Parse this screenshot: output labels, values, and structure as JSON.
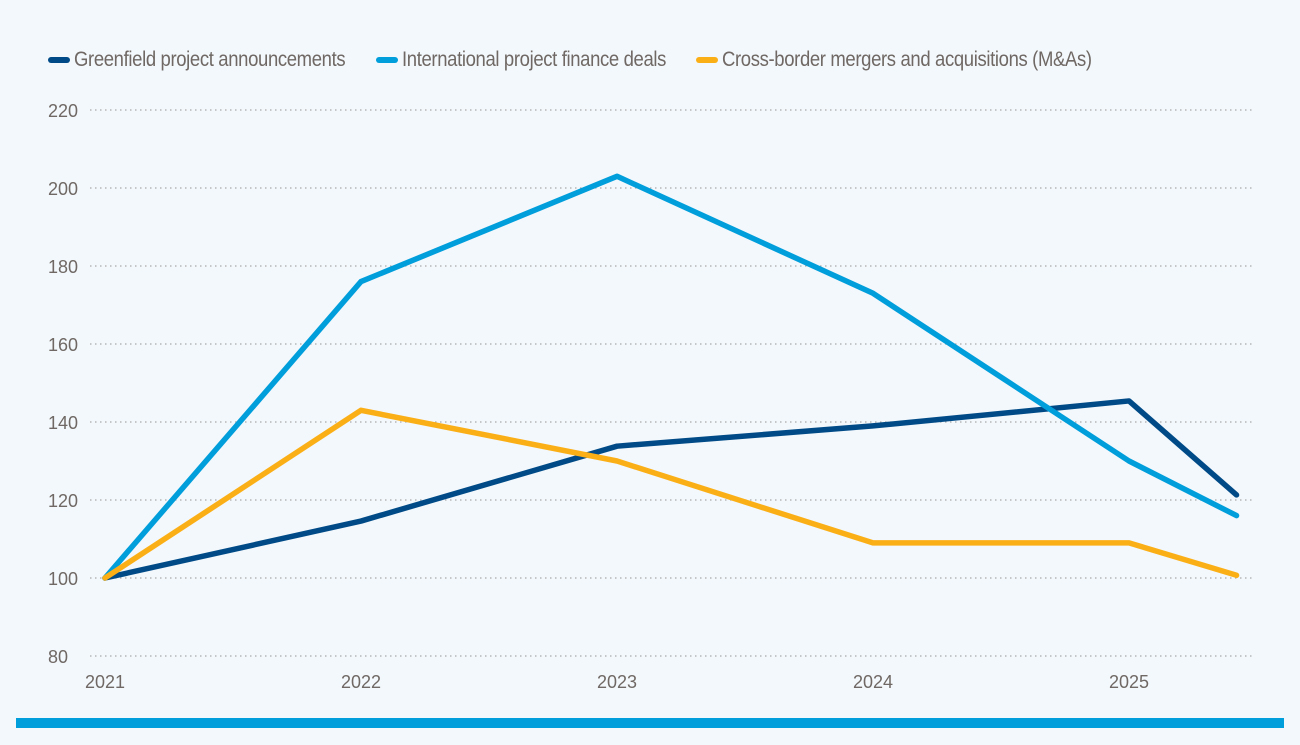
{
  "chart_data": {
    "type": "line",
    "title": "",
    "xlabel": "",
    "ylabel": "",
    "ylim": [
      80,
      220
    ],
    "yticks": [
      80,
      100,
      120,
      140,
      160,
      180,
      200,
      220
    ],
    "xticks": [
      "2021",
      "2022",
      "2023",
      "2024",
      "2025"
    ],
    "x": [
      2021,
      2022,
      2023,
      2024,
      2025,
      2025.42
    ],
    "grid": "horizontal dotted",
    "legend": "top-left",
    "series": [
      {
        "name": "Greenfield project announcements",
        "color": "#004b87",
        "values": [
          100,
          114.6,
          133.8,
          139,
          145.4,
          121.3
        ]
      },
      {
        "name": "International project finance deals",
        "color": "#009edb",
        "values": [
          100,
          176,
          203,
          173,
          130,
          116
        ]
      },
      {
        "name": "Cross-border mergers and acquisitions (M&As)",
        "color": "#fbaf17",
        "values": [
          100,
          143,
          130,
          109,
          109,
          100.7
        ]
      }
    ]
  },
  "footer_bar_color": "#009edb"
}
